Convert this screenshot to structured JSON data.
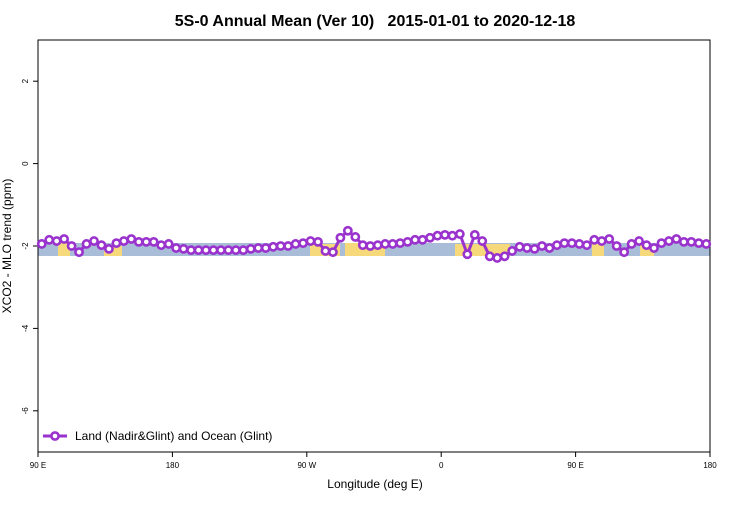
{
  "chart_data": {
    "type": "line",
    "title": "5S-0 Annual Mean (Ver 10)   2015-01-01 to 2020-12-18",
    "xlabel": "Longitude (deg E)",
    "ylabel": "XCO2 - MLO trend (ppm)",
    "x": [
      92.5,
      97.5,
      102.5,
      107.5,
      112.5,
      117.5,
      122.5,
      127.5,
      132.5,
      137.5,
      142.5,
      147.5,
      152.5,
      157.5,
      162.5,
      167.5,
      172.5,
      177.5,
      182.5,
      187.5,
      192.5,
      197.5,
      202.5,
      207.5,
      212.5,
      217.5,
      222.5,
      227.5,
      232.5,
      237.5,
      242.5,
      247.5,
      252.5,
      257.5,
      262.5,
      267.5,
      272.5,
      277.5,
      282.5,
      287.5,
      292.5,
      297.5,
      302.5,
      307.5,
      312.5,
      317.5,
      322.5,
      327.5,
      332.5,
      337.5,
      342.5,
      347.5,
      352.5,
      357.5,
      362.5,
      367.5,
      372.5,
      377.5,
      382.5,
      387.5,
      392.5,
      397.5,
      402.5,
      407.5,
      412.5,
      417.5,
      422.5,
      427.5,
      432.5,
      437.5,
      442.5,
      447.5,
      452.5,
      457.5,
      462.5,
      467.5,
      472.5,
      477.5,
      482.5,
      487.5,
      492.5,
      497.5,
      502.5,
      507.5,
      512.5,
      517.5,
      522.5,
      527.5,
      532.5,
      537.5
    ],
    "series": [
      {
        "name": "Land (Nadir&Glint) and Ocean (Glint)",
        "color": "#9a32cd",
        "values": [
          -1.95,
          -1.85,
          -1.88,
          -1.83,
          -2.0,
          -2.15,
          -1.95,
          -1.88,
          -1.98,
          -2.07,
          -1.93,
          -1.88,
          -1.83,
          -1.9,
          -1.9,
          -1.9,
          -1.98,
          -1.95,
          -2.05,
          -2.07,
          -2.1,
          -2.1,
          -2.1,
          -2.1,
          -2.1,
          -2.1,
          -2.1,
          -2.1,
          -2.07,
          -2.05,
          -2.05,
          -2.02,
          -2.0,
          -2.0,
          -1.95,
          -1.93,
          -1.88,
          -1.9,
          -2.12,
          -2.15,
          -1.8,
          -1.63,
          -1.78,
          -1.98,
          -2.0,
          -1.98,
          -1.95,
          -1.95,
          -1.93,
          -1.9,
          -1.85,
          -1.85,
          -1.8,
          -1.75,
          -1.73,
          -1.75,
          -1.71,
          -2.2,
          -1.73,
          -1.88,
          -2.25,
          -2.29,
          -2.25,
          -2.12,
          -2.02,
          -2.05,
          -2.07,
          -2.0,
          -2.05,
          -1.98,
          -1.93,
          -1.93,
          -1.95,
          -1.98,
          -1.85,
          -1.88,
          -1.83,
          -2.0,
          -2.15,
          -1.95,
          -1.88,
          -1.98,
          -2.05,
          -1.93,
          -1.88,
          -1.83,
          -1.9,
          -1.9,
          -1.93,
          -1.95
        ]
      }
    ],
    "xlim": [
      90,
      540
    ],
    "xticks": [
      {
        "value": 90,
        "label": "90 E"
      },
      180,
      {
        "value": 270,
        "label": "90 W"
      },
      {
        "value": 360,
        "label": "0"
      },
      {
        "value": 450,
        "label": "90 E"
      },
      {
        "value": 540,
        "label": "180"
      }
    ],
    "ylim": [
      -7,
      3
    ],
    "yticks": [
      -6,
      -4,
      -2,
      0,
      2
    ],
    "legend": "bottom left"
  }
}
